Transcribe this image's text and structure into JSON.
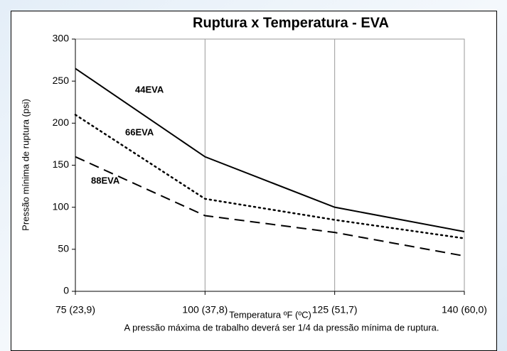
{
  "chart_data": {
    "type": "line",
    "title": "Ruptura x Temperatura - EVA",
    "x_label": "Temperatura ºF (ºC)",
    "y_label": "Pressão mínima de ruptura (psi)",
    "note": "A pressão máxima de trabalho deverá ser 1/4 da pressão mínima de ruptura.",
    "categories": [
      "75 (23,9)",
      "100 (37,8)",
      "125 (51,7)",
      "140 (60,0)"
    ],
    "series": [
      {
        "name": "44EVA",
        "color": "#000000",
        "dash": "solid",
        "values": [
          265,
          160,
          100,
          71
        ]
      },
      {
        "name": "66EVA",
        "color": "#000000",
        "dash": "dotted",
        "values": [
          210,
          110,
          85,
          63
        ]
      },
      {
        "name": "88EVA",
        "color": "#000000",
        "dash": "dashed",
        "values": [
          160,
          90,
          70,
          42
        ]
      }
    ],
    "ylim": [
      0,
      300
    ],
    "yticks": [
      0,
      50,
      100,
      150,
      200,
      250,
      300
    ],
    "grid": "x"
  }
}
